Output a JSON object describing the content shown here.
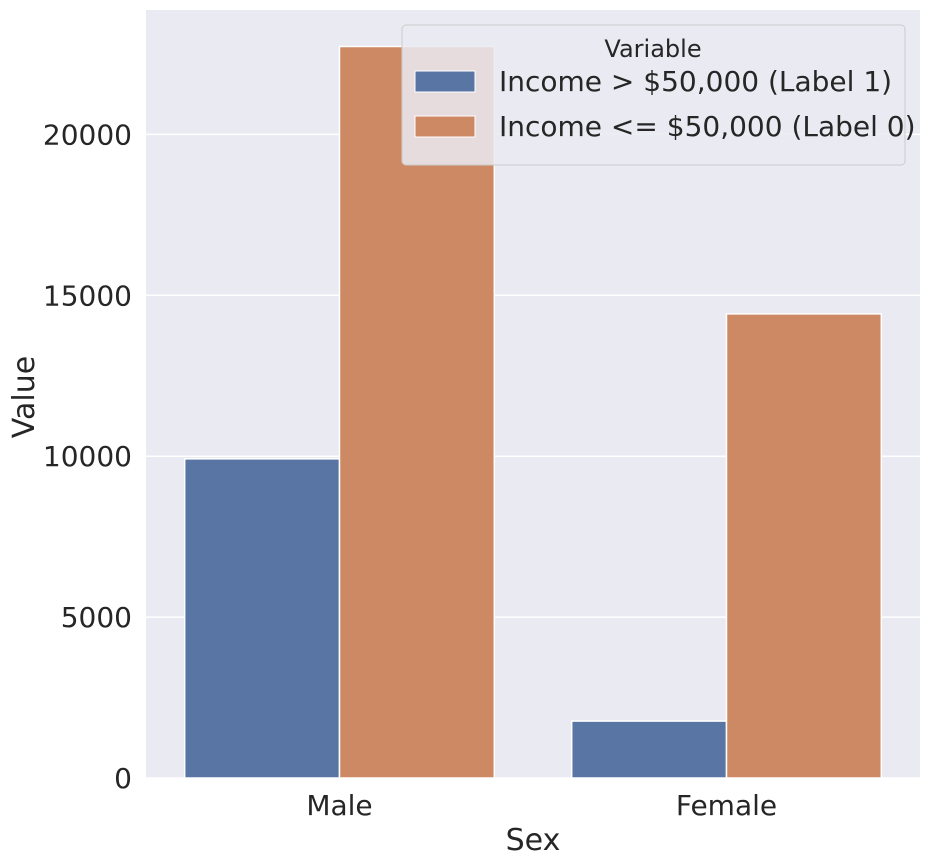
{
  "chart_data": {
    "type": "bar",
    "categories": [
      "Male",
      "Female"
    ],
    "series": [
      {
        "name": "Income > $50,000 (Label 1)",
        "values": [
          9918,
          1769
        ],
        "color": "#5975a4"
      },
      {
        "name": "Income <= $50,000 (Label 0)",
        "values": [
          22732,
          14423
        ],
        "color": "#cc8963"
      }
    ],
    "xlabel": "Sex",
    "ylabel": "Value",
    "ylim": [
      0,
      23866
    ],
    "yticks": [
      0,
      5000,
      10000,
      15000,
      20000
    ],
    "ytick_labels": [
      "0",
      "5000",
      "10000",
      "15000",
      "20000"
    ],
    "legend": {
      "title": "Variable",
      "placement": "top-right"
    },
    "grid": true,
    "background": "#eaeaf2"
  }
}
